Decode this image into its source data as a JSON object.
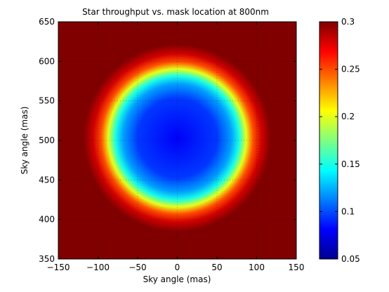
{
  "chart_data": {
    "type": "heatmap",
    "title": "Star throughput vs. mask location at 800nm",
    "xlabel": "Sky angle (mas)",
    "ylabel": "Sky angle (mas)",
    "xlim": [
      -150,
      150
    ],
    "ylim": [
      350,
      650
    ],
    "xticks": [
      -150,
      -100,
      -50,
      0,
      50,
      100,
      150
    ],
    "yticks": [
      350,
      400,
      450,
      500,
      550,
      600,
      650
    ],
    "xtick_labels": [
      "−150",
      "−100",
      "−50",
      "0",
      "50",
      "100",
      "150"
    ],
    "ytick_labels": [
      "350",
      "400",
      "450",
      "500",
      "550",
      "600",
      "650"
    ],
    "grid": true,
    "colorbar": {
      "min": 0.05,
      "max": 0.3,
      "ticks": [
        0.05,
        0.1,
        0.15,
        0.2,
        0.25,
        0.3
      ],
      "tick_labels": [
        "0.05",
        "0.1",
        "0.15",
        "0.2",
        "0.25",
        "0.3"
      ],
      "colormap": "jet",
      "placement": "right"
    },
    "field": {
      "center": [
        0,
        503
      ],
      "radial_profile": [
        {
          "r": 0,
          "value": 0.08
        },
        {
          "r": 50,
          "value": 0.095
        },
        {
          "r": 68,
          "value": 0.12
        },
        {
          "r": 78,
          "value": 0.15
        },
        {
          "r": 87,
          "value": 0.2
        },
        {
          "r": 96,
          "value": 0.25
        },
        {
          "r": 106,
          "value": 0.28
        },
        {
          "r": 118,
          "value": 0.3
        }
      ],
      "outside_value": 0.3
    }
  }
}
